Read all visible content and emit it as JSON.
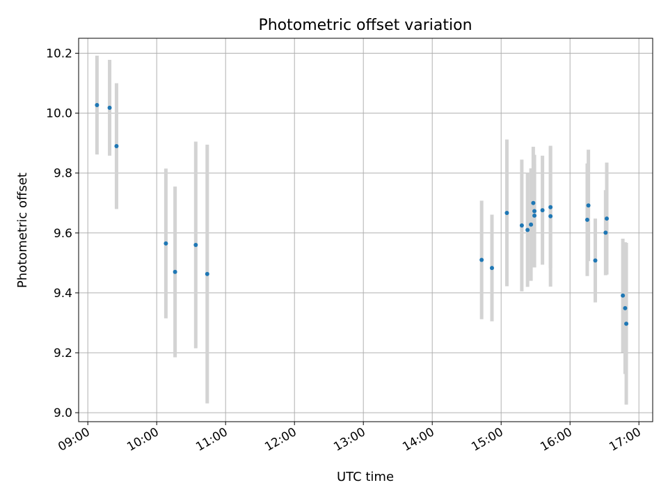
{
  "chart_data": {
    "type": "scatter",
    "title": "Photometric offset variation",
    "xlabel": "UTC time",
    "ylabel": "Photometric offset",
    "xlim": [
      "08:52",
      "17:12"
    ],
    "ylim": [
      8.97,
      10.25
    ],
    "x_ticks": [
      "09:00",
      "10:00",
      "11:00",
      "12:00",
      "13:00",
      "14:00",
      "15:00",
      "16:00",
      "17:00"
    ],
    "y_ticks": [
      9.0,
      9.2,
      9.4,
      9.6,
      9.8,
      10.0,
      10.2
    ],
    "y_tick_labels": [
      "9.0",
      "9.2",
      "9.4",
      "9.6",
      "9.8",
      "10.0",
      "10.2"
    ],
    "grid": true,
    "colors": {
      "points": "#1f77b4",
      "errorbars": "#d3d3d3",
      "grid": "#b0b0b0"
    },
    "series": [
      {
        "points": [
          {
            "x": "09:08",
            "y": 10.027,
            "yerr": 0.165
          },
          {
            "x": "09:19",
            "y": 10.018,
            "yerr": 0.16
          },
          {
            "x": "09:25",
            "y": 9.89,
            "yerr": 0.21
          },
          {
            "x": "10:08",
            "y": 9.565,
            "yerr": 0.25
          },
          {
            "x": "10:16",
            "y": 9.47,
            "yerr": 0.285
          },
          {
            "x": "10:34",
            "y": 9.56,
            "yerr": 0.345
          },
          {
            "x": "10:44",
            "y": 9.463,
            "yerr": 0.432
          },
          {
            "x": "14:43",
            "y": 9.51,
            "yerr": 0.198
          },
          {
            "x": "14:52",
            "y": 9.483,
            "yerr": 0.178
          },
          {
            "x": "15:05",
            "y": 9.667,
            "yerr": 0.245
          },
          {
            "x": "15:18",
            "y": 9.625,
            "yerr": 0.22
          },
          {
            "x": "15:23",
            "y": 9.61,
            "yerr": 0.19
          },
          {
            "x": "15:26",
            "y": 9.628,
            "yerr": 0.188
          },
          {
            "x": "15:28",
            "y": 9.7,
            "yerr": 0.188
          },
          {
            "x": "15:29",
            "y": 9.673,
            "yerr": 0.188
          },
          {
            "x": "15:29",
            "y": 9.658,
            "yerr": 0.173
          },
          {
            "x": "15:36",
            "y": 9.676,
            "yerr": 0.182
          },
          {
            "x": "15:43",
            "y": 9.686,
            "yerr": 0.203
          },
          {
            "x": "15:43",
            "y": 9.656,
            "yerr": 0.235
          },
          {
            "x": "16:15",
            "y": 9.644,
            "yerr": 0.188
          },
          {
            "x": "16:16",
            "y": 9.692,
            "yerr": 0.186
          },
          {
            "x": "16:22",
            "y": 9.508,
            "yerr": 0.14
          },
          {
            "x": "16:31",
            "y": 9.601,
            "yerr": 0.142
          },
          {
            "x": "16:32",
            "y": 9.648,
            "yerr": 0.187
          },
          {
            "x": "16:46",
            "y": 9.391,
            "yerr": 0.19
          },
          {
            "x": "16:48",
            "y": 9.349,
            "yerr": 0.22
          },
          {
            "x": "16:49",
            "y": 9.297,
            "yerr": 0.27
          }
        ]
      }
    ]
  }
}
